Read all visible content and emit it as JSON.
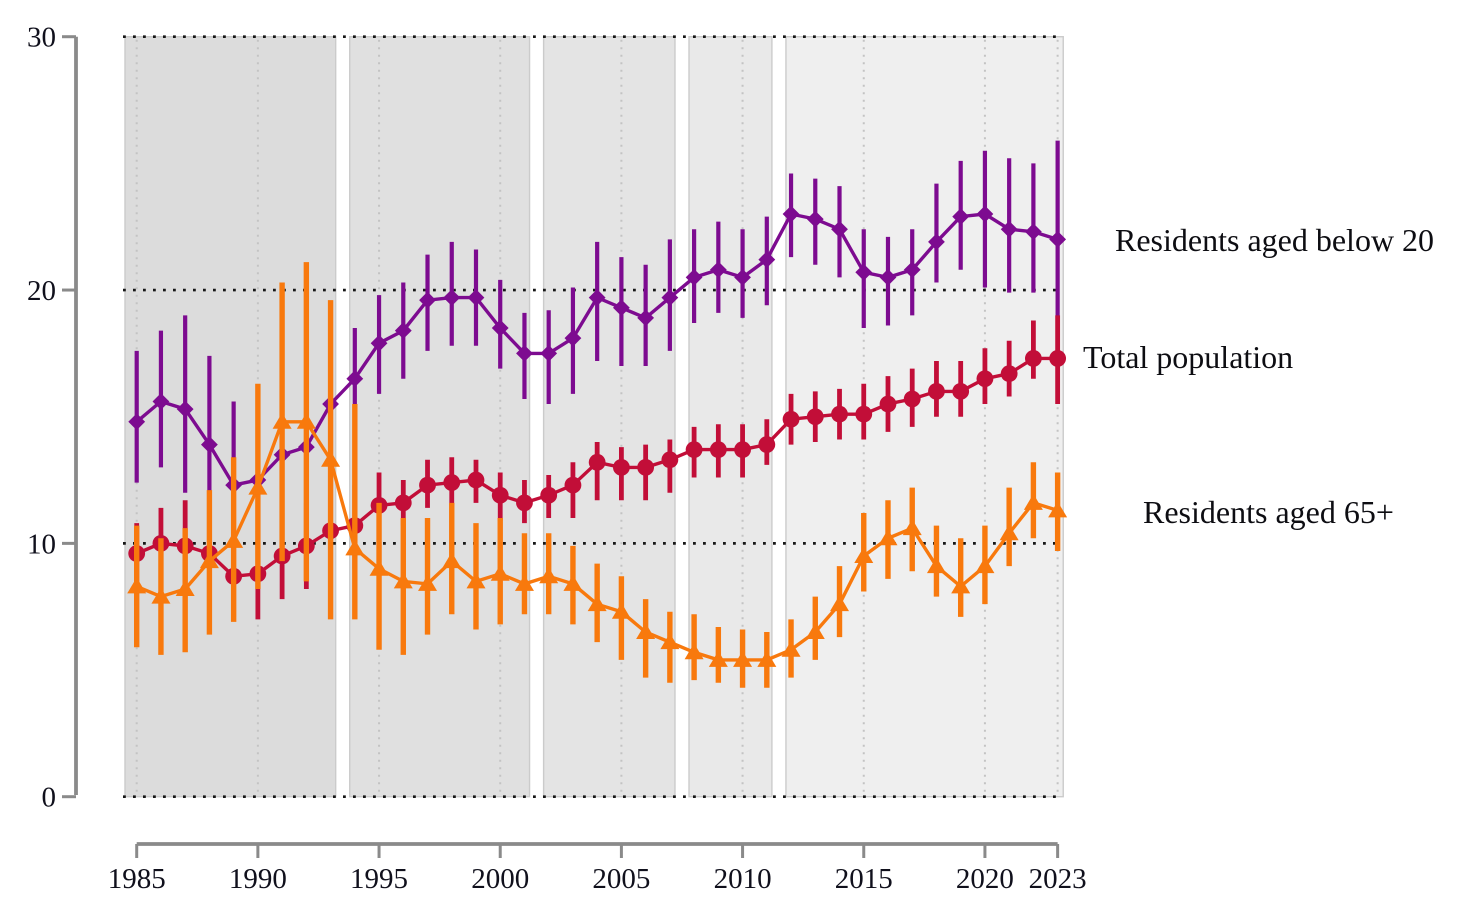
{
  "figure": {
    "background": "#ffffff",
    "plot": {
      "axis_color": "#8a8a8a",
      "grid_dot_color": "#161616",
      "minor_grid_color": "#c3c3c3",
      "band_border_color": "#cbcbcb"
    },
    "y_axis": {
      "ticks": [
        0,
        10,
        20,
        30
      ],
      "min": 0,
      "max": 30
    },
    "x_axis": {
      "tick_years": [
        1985,
        1990,
        1995,
        2000,
        2005,
        2010,
        2015,
        2020,
        2023
      ]
    },
    "eras": [
      {
        "start": 1985,
        "end": 1993,
        "fill": "#dcdcdc"
      },
      {
        "start": 1994,
        "end": 2001,
        "fill": "#e0e0e0"
      },
      {
        "start": 2002,
        "end": 2007,
        "fill": "#e4e4e4"
      },
      {
        "start": 2008,
        "end": 2011,
        "fill": "#e9e9e9"
      },
      {
        "start": 2012,
        "end": 2023,
        "fill": "#efefef"
      }
    ]
  },
  "chart_data": {
    "type": "line",
    "title": "",
    "xlabel": "",
    "ylabel": "",
    "ylim": [
      0,
      30
    ],
    "grid": "dotted horizontal lines at 0,10,20,30; dotted vertical lines at labeled years",
    "legend_position": "right-of-plot, at last data point of each series",
    "x": [
      1985,
      1986,
      1987,
      1988,
      1989,
      1990,
      1991,
      1992,
      1993,
      1994,
      1995,
      1996,
      1997,
      1998,
      1999,
      2000,
      2001,
      2002,
      2003,
      2004,
      2005,
      2006,
      2007,
      2008,
      2009,
      2010,
      2011,
      2012,
      2013,
      2014,
      2015,
      2016,
      2017,
      2018,
      2019,
      2020,
      2021,
      2022,
      2023
    ],
    "series": [
      {
        "name": "Residents aged below 20",
        "color": "#7d0b90",
        "marker": "diamond",
        "values": [
          14.8,
          15.6,
          15.3,
          13.9,
          12.3,
          12.5,
          13.5,
          13.8,
          15.5,
          16.5,
          17.9,
          18.4,
          19.6,
          19.7,
          19.7,
          18.5,
          17.5,
          17.5,
          18.1,
          19.7,
          19.3,
          18.9,
          19.7,
          20.5,
          20.8,
          20.5,
          21.2,
          23.0,
          22.8,
          22.4,
          20.7,
          20.5,
          20.8,
          21.9,
          22.9,
          23.0,
          22.4,
          22.3,
          22.0
        ],
        "ci_low": [
          12.4,
          13.0,
          12.0,
          11.3,
          9.5,
          9.0,
          10.5,
          10.8,
          13.4,
          15.5,
          15.9,
          16.5,
          17.6,
          17.8,
          17.8,
          16.9,
          15.7,
          15.5,
          15.9,
          17.2,
          17.0,
          17.0,
          17.6,
          18.7,
          19.1,
          18.9,
          19.4,
          21.3,
          21.0,
          20.5,
          18.5,
          18.6,
          19.0,
          20.3,
          20.8,
          20.1,
          19.9,
          19.9,
          18.2
        ],
        "ci_high": [
          17.6,
          18.4,
          19.0,
          17.4,
          15.6,
          15.9,
          16.5,
          16.8,
          17.6,
          18.5,
          19.8,
          20.3,
          21.4,
          21.9,
          21.6,
          20.4,
          19.1,
          19.2,
          20.1,
          21.9,
          21.3,
          21.0,
          22.0,
          22.4,
          22.7,
          22.4,
          22.9,
          24.6,
          24.4,
          24.1,
          22.4,
          22.1,
          22.4,
          24.2,
          25.1,
          25.5,
          25.2,
          25.0,
          25.9
        ]
      },
      {
        "name": "Total population",
        "color": "#c20e38",
        "marker": "circle",
        "values": [
          9.6,
          10.0,
          9.9,
          9.6,
          8.7,
          8.8,
          9.5,
          9.9,
          10.5,
          10.7,
          11.5,
          11.6,
          12.3,
          12.4,
          12.5,
          11.9,
          11.6,
          11.9,
          12.3,
          13.2,
          13.0,
          13.0,
          13.3,
          13.7,
          13.7,
          13.7,
          13.9,
          14.9,
          15.0,
          15.1,
          15.1,
          15.5,
          15.7,
          16.0,
          16.0,
          16.5,
          16.7,
          17.3,
          17.3
        ],
        "ci_low": [
          8.5,
          8.6,
          8.3,
          8.0,
          7.1,
          7.0,
          7.8,
          8.2,
          8.6,
          9.0,
          10.1,
          10.7,
          11.4,
          11.5,
          11.6,
          10.9,
          10.8,
          11.0,
          11.0,
          11.7,
          11.7,
          11.7,
          12.0,
          12.6,
          12.6,
          12.6,
          13.1,
          13.9,
          14.0,
          14.1,
          14.1,
          14.4,
          14.6,
          15.0,
          15.0,
          15.5,
          15.8,
          16.5,
          15.5
        ],
        "ci_high": [
          10.8,
          11.4,
          11.7,
          11.0,
          10.4,
          10.5,
          11.2,
          11.6,
          12.4,
          12.3,
          12.8,
          12.5,
          13.3,
          13.4,
          13.3,
          12.8,
          12.5,
          12.7,
          13.2,
          14.0,
          13.8,
          13.9,
          14.1,
          14.6,
          14.7,
          14.7,
          14.9,
          15.9,
          16.0,
          16.1,
          16.3,
          16.6,
          16.9,
          17.2,
          17.2,
          17.7,
          18.0,
          18.8,
          19.0
        ]
      },
      {
        "name": "Residents aged 65+",
        "color": "#f8790d",
        "marker": "triangle",
        "values": [
          8.3,
          7.9,
          8.2,
          9.3,
          10.1,
          12.2,
          14.8,
          14.8,
          13.3,
          9.8,
          9.0,
          8.5,
          8.4,
          9.3,
          8.5,
          8.8,
          8.4,
          8.7,
          8.4,
          7.6,
          7.3,
          6.5,
          6.1,
          5.7,
          5.4,
          5.4,
          5.4,
          5.8,
          6.5,
          7.6,
          9.5,
          10.2,
          10.6,
          9.1,
          8.3,
          9.1,
          10.4,
          11.6,
          11.3
        ],
        "ci_low": [
          5.9,
          5.6,
          5.7,
          6.4,
          6.9,
          8.2,
          9.3,
          8.5,
          7.0,
          7.0,
          5.8,
          5.6,
          6.4,
          7.2,
          6.6,
          6.8,
          7.2,
          7.2,
          6.8,
          6.1,
          5.4,
          4.7,
          4.5,
          4.6,
          4.5,
          4.3,
          4.3,
          4.7,
          5.4,
          6.3,
          8.1,
          8.6,
          8.9,
          7.9,
          7.1,
          7.6,
          9.1,
          10.2,
          9.7
        ],
        "ci_high": [
          10.7,
          10.2,
          10.6,
          12.1,
          13.4,
          16.3,
          20.3,
          21.1,
          19.6,
          15.5,
          11.6,
          11.0,
          11.0,
          11.6,
          10.8,
          11.0,
          10.4,
          10.4,
          9.9,
          9.2,
          8.7,
          7.8,
          7.3,
          7.2,
          6.7,
          6.6,
          6.5,
          7.0,
          7.9,
          9.1,
          11.2,
          11.7,
          12.2,
          10.7,
          10.2,
          10.7,
          12.2,
          13.2,
          12.8
        ]
      }
    ]
  }
}
